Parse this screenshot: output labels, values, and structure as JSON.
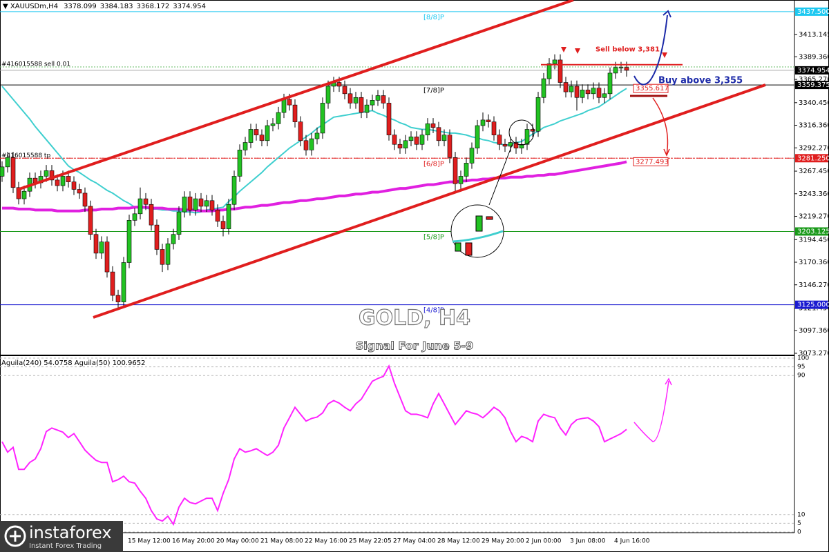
{
  "chart_data": [
    {
      "type": "candlestick",
      "symbol": "XAUUSDm,H4",
      "title": "GOLD, H4",
      "subtitle": "Signal For June 5-9",
      "categories": [
        null,
        null,
        null,
        null,
        null,
        null,
        null,
        null,
        null,
        null,
        null,
        null,
        null,
        null,
        null,
        null,
        null,
        null,
        null,
        null,
        null,
        null,
        null,
        "15 May 12:00",
        null,
        null,
        null,
        null,
        null,
        null,
        null,
        "16 May 20:00",
        null,
        null,
        null,
        null,
        null,
        null,
        null,
        "20 May 00:00",
        null,
        null,
        null,
        null,
        null,
        null,
        null,
        "21 May 08:00",
        null,
        null,
        null,
        null,
        null,
        null,
        null,
        "22 May 16:00",
        null,
        null,
        null,
        null,
        null,
        null,
        null,
        "25 May 22:05",
        null,
        null,
        null,
        null,
        null,
        null,
        null,
        "27 May 04:00",
        null,
        null,
        null,
        null,
        null,
        null,
        null,
        "28 May 12:00",
        null,
        null,
        null,
        null,
        null,
        null,
        null,
        "29 May 20:00",
        null,
        null,
        null,
        null,
        null,
        null,
        null,
        "2 Jun 00:00",
        null,
        null,
        null,
        null,
        null,
        null,
        null,
        "3 Jun 08:00",
        null,
        null,
        null,
        null,
        null,
        null,
        null,
        "4 Jun 16:00",
        null,
        null
      ],
      "open": [
        3262,
        3272,
        3282,
        3250,
        3238,
        3246,
        3260,
        3255,
        3262,
        3268,
        3258,
        3252,
        3262,
        3256,
        3248,
        3244,
        3230,
        3200,
        3180,
        3192,
        3160,
        3135,
        3128,
        3170,
        3215,
        3222,
        3238,
        3232,
        3210,
        3184,
        3168,
        3190,
        3200,
        3224,
        3240,
        3226,
        3238,
        3230,
        3236,
        3226,
        3214,
        3206,
        3232,
        3262,
        3290,
        3298,
        3312,
        3306,
        3300,
        3316,
        3318,
        3330,
        3344,
        3338,
        3320,
        3300,
        3290,
        3302,
        3308,
        3340,
        3358,
        3362,
        3358,
        3350,
        3340,
        3346,
        3330,
        3338,
        3343,
        3348,
        3340,
        3306,
        3296,
        3292,
        3300,
        3304,
        3296,
        3306,
        3318,
        3314,
        3300,
        3306,
        3282,
        3254,
        3262,
        3276,
        3292,
        3316,
        3322,
        3320,
        3306,
        3296,
        3294,
        3298,
        3292,
        3296,
        3312,
        3310,
        3346,
        3366,
        3382,
        3386,
        3362,
        3352,
        3358,
        3346,
        3354,
        3350,
        3356,
        3346,
        3350,
        3372,
        3378,
        3378.099
      ],
      "high": [
        3278,
        3288,
        3288,
        3256,
        3252,
        3266,
        3266,
        3268,
        3274,
        3274,
        3264,
        3268,
        3268,
        3262,
        3254,
        3250,
        3236,
        3206,
        3198,
        3198,
        3166,
        3141,
        3176,
        3221,
        3228,
        3250,
        3244,
        3238,
        3216,
        3190,
        3196,
        3206,
        3230,
        3246,
        3246,
        3244,
        3244,
        3242,
        3242,
        3232,
        3220,
        3238,
        3268,
        3296,
        3304,
        3318,
        3318,
        3312,
        3322,
        3324,
        3336,
        3350,
        3350,
        3344,
        3326,
        3306,
        3308,
        3314,
        3346,
        3364,
        3368,
        3368,
        3364,
        3356,
        3352,
        3352,
        3344,
        3349,
        3354,
        3354,
        3346,
        3312,
        3302,
        3306,
        3310,
        3310,
        3312,
        3324,
        3324,
        3320,
        3312,
        3312,
        3288,
        3268,
        3282,
        3298,
        3322,
        3330,
        3328,
        3326,
        3312,
        3302,
        3304,
        3304,
        3302,
        3318,
        3318,
        3352,
        3372,
        3388,
        3392,
        3392,
        3368,
        3364,
        3364,
        3360,
        3360,
        3362,
        3362,
        3356,
        3378,
        3384,
        3384,
        3384.183
      ],
      "low": [
        3256,
        3266,
        3244,
        3232,
        3232,
        3240,
        3249,
        3249,
        3256,
        3252,
        3246,
        3246,
        3250,
        3242,
        3238,
        3224,
        3194,
        3174,
        3174,
        3154,
        3129,
        3121,
        3122,
        3164,
        3209,
        3216,
        3226,
        3204,
        3178,
        3160,
        3162,
        3184,
        3194,
        3218,
        3220,
        3220,
        3224,
        3224,
        3220,
        3208,
        3198,
        3200,
        3226,
        3256,
        3284,
        3292,
        3300,
        3294,
        3294,
        3310,
        3312,
        3324,
        3332,
        3314,
        3294,
        3284,
        3284,
        3296,
        3302,
        3334,
        3352,
        3352,
        3344,
        3334,
        3334,
        3324,
        3324,
        3332,
        3337,
        3334,
        3300,
        3290,
        3286,
        3286,
        3294,
        3290,
        3290,
        3300,
        3308,
        3294,
        3294,
        3276,
        3246,
        3248,
        3256,
        3270,
        3286,
        3310,
        3314,
        3300,
        3290,
        3288,
        3288,
        3286,
        3286,
        3290,
        3304,
        3304,
        3340,
        3360,
        3376,
        3356,
        3346,
        3346,
        3332,
        3340,
        3344,
        3344,
        3340,
        3340,
        3344,
        3366,
        3372,
        3368.172
      ],
      "close": [
        3272,
        3282,
        3250,
        3238,
        3246,
        3260,
        3255,
        3262,
        3268,
        3258,
        3252,
        3262,
        3256,
        3248,
        3244,
        3230,
        3200,
        3180,
        3192,
        3160,
        3135,
        3128,
        3170,
        3215,
        3222,
        3238,
        3232,
        3210,
        3184,
        3168,
        3190,
        3200,
        3224,
        3240,
        3226,
        3238,
        3230,
        3236,
        3226,
        3214,
        3206,
        3232,
        3262,
        3290,
        3298,
        3312,
        3306,
        3300,
        3316,
        3318,
        3330,
        3344,
        3338,
        3320,
        3300,
        3290,
        3302,
        3308,
        3340,
        3358,
        3362,
        3358,
        3350,
        3340,
        3346,
        3330,
        3338,
        3343,
        3348,
        3340,
        3306,
        3296,
        3292,
        3300,
        3304,
        3296,
        3306,
        3318,
        3314,
        3300,
        3306,
        3282,
        3254,
        3262,
        3276,
        3292,
        3316,
        3322,
        3320,
        3306,
        3296,
        3294,
        3298,
        3292,
        3296,
        3312,
        3310,
        3346,
        3366,
        3382,
        3386,
        3362,
        3352,
        3358,
        3346,
        3354,
        3350,
        3356,
        3346,
        3350,
        3372,
        3378,
        3378,
        3374.954
      ],
      "up_color": "#22c322",
      "down_color": "#e01e1e",
      "overlays": [
        {
          "color": "#3fcfcf",
          "values": [
            3358,
            3351,
            3344,
            3337,
            3330,
            3323,
            3315,
            3308,
            3301,
            3294,
            3287,
            3280,
            3273,
            3269,
            3266,
            3262,
            3258,
            3255,
            3251,
            3247,
            3244,
            3240,
            3236,
            3233,
            3229,
            3228,
            3228,
            3227,
            3227,
            3226,
            3226,
            3225,
            3225,
            3224,
            3224,
            3223,
            3224,
            3226,
            3227,
            3228,
            3229,
            3235,
            3240,
            3246,
            3251,
            3256,
            3261,
            3266,
            3272,
            3277,
            3282,
            3287,
            3292,
            3296,
            3300,
            3304,
            3308,
            3313,
            3317,
            3321,
            3325,
            3326,
            3327,
            3328,
            3329,
            3330,
            3331,
            3332,
            3329,
            3327,
            3324,
            3322,
            3319,
            3317,
            3314,
            3313,
            3312,
            3312,
            3311,
            3310,
            3309,
            3308,
            3308,
            3307,
            3306,
            3304,
            3303,
            3301,
            3300,
            3298,
            3297,
            3295,
            3296,
            3298,
            3299,
            3303,
            3307,
            3310,
            3314,
            3316,
            3318,
            3321,
            3323,
            3325,
            3327,
            3329,
            3332,
            3334,
            3336,
            3340,
            3344,
            3348,
            3352,
            3355.617
          ]
        },
        {
          "color": "#e020e0",
          "values": [
            3228,
            3228,
            3228,
            3227,
            3227,
            3227,
            3226,
            3226,
            3226,
            3226,
            3225,
            3225,
            3225,
            3225,
            3225,
            3226,
            3226,
            3226,
            3227,
            3227,
            3227,
            3228,
            3228,
            3228,
            3229,
            3229,
            3229,
            3228,
            3228,
            3228,
            3227,
            3227,
            3227,
            3226,
            3226,
            3226,
            3225,
            3225,
            3225,
            3226,
            3226,
            3227,
            3227,
            3228,
            3229,
            3229,
            3230,
            3231,
            3231,
            3232,
            3233,
            3234,
            3234,
            3235,
            3236,
            3236,
            3237,
            3238,
            3238,
            3239,
            3240,
            3241,
            3241,
            3242,
            3243,
            3243,
            3244,
            3245,
            3245,
            3246,
            3247,
            3248,
            3249,
            3249,
            3250,
            3251,
            3252,
            3253,
            3253,
            3254,
            3255,
            3256,
            3256,
            3257,
            3257,
            3258,
            3258,
            3259,
            3259,
            3260,
            3260,
            3260,
            3261,
            3261,
            3261,
            3262,
            3262,
            3263,
            3263,
            3264,
            3264,
            3265,
            3266,
            3267,
            3268,
            3269,
            3270,
            3271,
            3272,
            3273,
            3274,
            3275,
            3276,
            3277.493
          ]
        }
      ],
      "levels": [
        {
          "name": "[8/8]P",
          "price": {
            "value": 3437.5,
            "label": "3437.500"
          },
          "color": "#1ec8f0"
        },
        {
          "name": "[7/8]P",
          "price": {
            "value": 3359.375,
            "label": "3359.375"
          },
          "color": "#000000"
        },
        {
          "name": "[6/8]P",
          "price": {
            "value": 3281.25,
            "label": "3281.250"
          },
          "color": "#e01e1e"
        },
        {
          "name": "[5/8]P",
          "price": {
            "value": 3203.125,
            "label": "3203.125"
          },
          "color": "#1a9a1a"
        },
        {
          "name": "[4/8]P",
          "price": {
            "value": 3125,
            "label": "3125.000"
          },
          "color": "#1a1ad0"
        }
      ],
      "orders": [
        {
          "label": "#416015588 sell 0.01",
          "price": 3378.6
        },
        {
          "label": "#416015588 tp",
          "price": 3281.25
        }
      ],
      "signals": [
        {
          "label": "Sell below 3,381",
          "price": 3381,
          "color": "#e02020"
        },
        {
          "label": "Buy above 3,355",
          "price": 3355,
          "color": "#1c2aa8"
        }
      ],
      "ylim": [
        3071.05,
        3449.93
      ],
      "yticks": [
        3413.145,
        {
          "value": 3389.36,
          "label": "3389.360"
        },
        {
          "value": 3365.27,
          "label": "3365.270"
        },
        {
          "value": 3340.45,
          "label": "3340.450"
        },
        {
          "value": 3316.36,
          "label": "3316.360"
        },
        {
          "value": 3292.27,
          "label": "3292.270"
        },
        {
          "value": 3267.45,
          "label": "3267.450"
        },
        {
          "value": 3243.36,
          "label": "3243.360"
        },
        {
          "value": 3219.27,
          "label": "3219.270"
        },
        {
          "value": 3194.45,
          "label": "3194.450"
        },
        {
          "value": 3170.36,
          "label": "3170.360"
        },
        {
          "value": 3146.27,
          "label": "3146.270"
        },
        {
          "value": 3121.45,
          "label": "3121.450"
        },
        {
          "value": 3097.36,
          "label": "3097.360"
        },
        {
          "value": 3073.27,
          "label": "3073.270"
        }
      ]
    },
    {
      "type": "line",
      "label": "Aguila(240) 54.0758 Aguila(50) 100.9652",
      "color": "#ff22ff",
      "values": [
        51.9,
        45.9,
        48.7,
        36.0,
        36.0,
        40.0,
        42.0,
        47.9,
        57.8,
        59.8,
        58.6,
        57.4,
        54.3,
        56.6,
        51.9,
        47.1,
        44.0,
        41.2,
        40.0,
        40.0,
        28.9,
        30.1,
        32.1,
        28.9,
        28.1,
        23.4,
        19.4,
        12.3,
        7.5,
        6.3,
        9.1,
        4.4,
        14.3,
        19.4,
        17.0,
        16.2,
        17.8,
        19.4,
        19.4,
        12.3,
        22.2,
        30.1,
        42.0,
        47.9,
        45.9,
        46.7,
        47.9,
        45.9,
        44.0,
        45.9,
        49.9,
        59.8,
        65.7,
        71.7,
        67.7,
        63.8,
        65.3,
        66.1,
        68.5,
        73.7,
        75.6,
        74.1,
        71.7,
        69.7,
        73.7,
        76.4,
        81.6,
        86.7,
        88.3,
        89.5,
        95.4,
        85.5,
        77.6,
        69.7,
        67.7,
        67.7,
        66.9,
        65.7,
        73.7,
        79.6,
        73.7,
        67.7,
        61.8,
        65.7,
        69.7,
        68.5,
        67.7,
        65.7,
        68.5,
        71.7,
        69.7,
        65.7,
        57.8,
        51.9,
        55.0,
        53.9,
        51.9,
        63.8,
        67.7,
        66.5,
        65.7,
        59.8,
        55.8,
        61.8,
        64.6,
        65.3,
        65.7,
        63.8,
        60.6,
        51.9,
        53.5,
        55.0,
        56.6,
        59.0
      ],
      "ylim": [
        0,
        100
      ],
      "yticks": [
        100,
        95,
        90,
        10,
        5,
        0
      ]
    }
  ],
  "branding": {
    "name": "instaforex",
    "tagline": "Instant Forex Trading"
  }
}
